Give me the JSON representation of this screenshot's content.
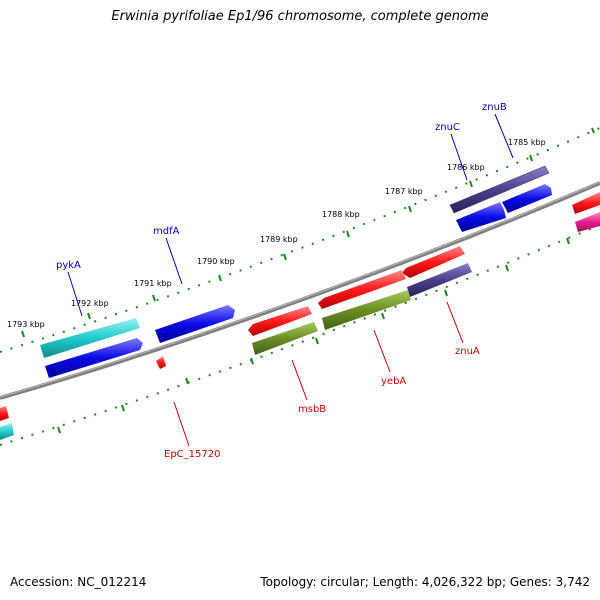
{
  "title": "Erwinia pyrifoliae Ep1/96 chromosome, complete genome",
  "footer": {
    "accession": "Accession: NC_012214",
    "topology": "Topology: circular; Length: 4,026,322 bp; Genes: 3,742"
  },
  "ticks": [
    "1785 kbp",
    "1786 kbp",
    "1787 kbp",
    "1788 kbp",
    "1789 kbp",
    "1790 kbp",
    "1791 kbp",
    "1792 kbp",
    "1793 kbp"
  ],
  "genes_top": [
    "znuB",
    "znuC",
    "mdfA",
    "pykA"
  ],
  "genes_bottom": [
    "znuA",
    "yebA",
    "msbB",
    "EpC_15720"
  ],
  "colors": {
    "red": "#ff1a1a",
    "blue": "#0a0ae6",
    "cyan": "#22cccc",
    "navy": "#4a3f8c",
    "olive": "#6b8e23",
    "magenta": "#e61e8c",
    "track": "#1a8a1a",
    "backbone": "#808080",
    "label_top": "#0000b4",
    "label_bottom": "#c80000"
  }
}
